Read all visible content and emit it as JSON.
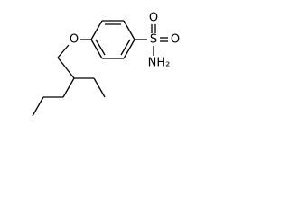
{
  "atoms": [
    {
      "label": "O"
    },
    {
      "label": "S"
    },
    {
      "label": "O"
    },
    {
      "label": "O"
    },
    {
      "label": "NH₂"
    }
  ]
}
